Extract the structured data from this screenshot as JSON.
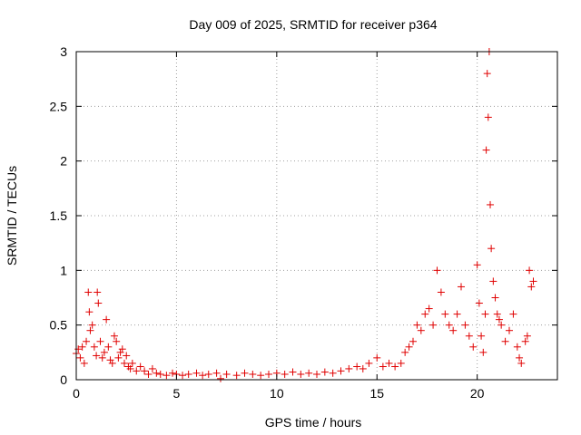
{
  "chart_data": {
    "type": "scatter",
    "marker": "+",
    "title": "Day 009 of 2025, SRMTID for receiver p364",
    "xlabel": "GPS time / hours",
    "ylabel": "SRMTID / TECUs",
    "xlim": [
      0,
      24
    ],
    "ylim": [
      0,
      3
    ],
    "xticks": [
      0,
      5,
      10,
      15,
      20
    ],
    "xtick_labels": [
      "0",
      "5",
      "10",
      "15",
      "20"
    ],
    "yticks": [
      0,
      0.5,
      1,
      1.5,
      2,
      2.5,
      3
    ],
    "ytick_labels": [
      "0",
      "0.5",
      "1",
      "1.5",
      "2",
      "2.5",
      "3"
    ],
    "grid": true,
    "colors": {
      "series": "#e00000",
      "grid": "#a0a0a0",
      "axes": "#000000"
    },
    "series": [
      {
        "name": "SRMTID",
        "x": [
          0.0,
          0.1,
          0.2,
          0.3,
          0.4,
          0.5,
          0.6,
          0.65,
          0.7,
          0.8,
          0.9,
          1.0,
          1.05,
          1.1,
          1.2,
          1.3,
          1.4,
          1.5,
          1.6,
          1.7,
          1.8,
          1.9,
          2.0,
          2.1,
          2.2,
          2.3,
          2.4,
          2.5,
          2.6,
          2.7,
          2.8,
          3.0,
          3.2,
          3.4,
          3.6,
          3.8,
          4.0,
          4.2,
          4.5,
          4.8,
          5.0,
          5.3,
          5.6,
          6.0,
          6.3,
          6.6,
          7.0,
          7.2,
          7.5,
          8.0,
          8.4,
          8.8,
          9.2,
          9.6,
          10.0,
          10.4,
          10.8,
          11.2,
          11.6,
          12.0,
          12.4,
          12.8,
          13.2,
          13.6,
          14.0,
          14.3,
          14.6,
          15.0,
          15.3,
          15.6,
          15.9,
          16.2,
          16.4,
          16.6,
          16.8,
          17.0,
          17.2,
          17.4,
          17.6,
          17.8,
          18.0,
          18.2,
          18.4,
          18.6,
          18.8,
          19.0,
          19.2,
          19.4,
          19.6,
          19.8,
          20.0,
          20.1,
          20.2,
          20.3,
          20.4,
          20.45,
          20.5,
          20.55,
          20.6,
          20.65,
          20.7,
          20.8,
          20.9,
          21.0,
          21.1,
          21.2,
          21.4,
          21.6,
          21.8,
          22.0,
          22.1,
          22.2,
          22.4,
          22.5,
          22.6,
          22.7,
          22.8
        ],
        "y": [
          0.24,
          0.28,
          0.2,
          0.3,
          0.15,
          0.35,
          0.8,
          0.62,
          0.45,
          0.5,
          0.3,
          0.22,
          0.8,
          0.7,
          0.35,
          0.2,
          0.25,
          0.55,
          0.3,
          0.18,
          0.15,
          0.4,
          0.35,
          0.2,
          0.25,
          0.28,
          0.15,
          0.22,
          0.12,
          0.1,
          0.15,
          0.08,
          0.12,
          0.08,
          0.05,
          0.1,
          0.06,
          0.05,
          0.04,
          0.06,
          0.05,
          0.04,
          0.05,
          0.06,
          0.04,
          0.05,
          0.06,
          0.01,
          0.05,
          0.04,
          0.06,
          0.05,
          0.04,
          0.05,
          0.06,
          0.05,
          0.07,
          0.05,
          0.06,
          0.05,
          0.07,
          0.06,
          0.08,
          0.1,
          0.12,
          0.1,
          0.15,
          0.2,
          0.12,
          0.15,
          0.12,
          0.15,
          0.25,
          0.3,
          0.35,
          0.5,
          0.45,
          0.6,
          0.65,
          0.5,
          1.0,
          0.8,
          0.6,
          0.5,
          0.45,
          0.6,
          0.85,
          0.5,
          0.4,
          0.3,
          1.05,
          0.7,
          0.4,
          0.25,
          0.6,
          2.1,
          2.8,
          2.4,
          3.0,
          1.6,
          1.2,
          0.9,
          0.75,
          0.6,
          0.55,
          0.5,
          0.35,
          0.45,
          0.6,
          0.3,
          0.2,
          0.15,
          0.35,
          0.4,
          1.0,
          0.85,
          0.9
        ]
      }
    ]
  }
}
